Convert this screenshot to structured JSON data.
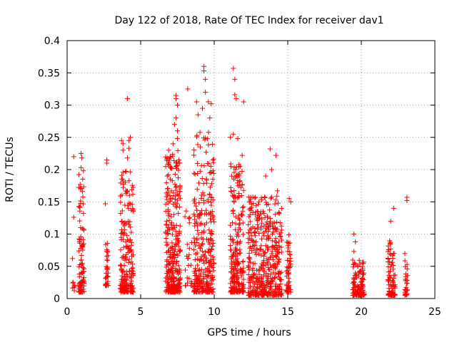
{
  "chart_data": {
    "type": "scatter",
    "title": "Day 122 of 2018, Rate Of TEC Index for receiver dav1",
    "xlabel": "GPS time / hours",
    "ylabel": "ROTI / TECUs",
    "xlim": [
      0,
      25
    ],
    "ylim": [
      0,
      0.4
    ],
    "x_ticks": [
      "0",
      "5",
      "10",
      "15",
      "20",
      "25"
    ],
    "y_ticks": [
      "0",
      "0.05",
      "0.1",
      "0.15",
      "0.2",
      "0.25",
      "0.3",
      "0.35",
      "0.4"
    ],
    "grid": true,
    "marker": "plus",
    "color": "#ff0000",
    "clusters": [
      {
        "x_range": [
          0.35,
          0.55
        ],
        "y_range": [
          0.01,
          0.12
        ],
        "n": 8
      },
      {
        "x_range": [
          0.8,
          1.15
        ],
        "y_range": [
          0.01,
          0.2
        ],
        "n": 110
      },
      {
        "x_range": [
          2.6,
          2.8
        ],
        "y_range": [
          0.02,
          0.09
        ],
        "n": 35
      },
      {
        "x_range": [
          3.6,
          4.5
        ],
        "y_range": [
          0.01,
          0.2
        ],
        "n": 200
      },
      {
        "x_range": [
          6.7,
          7.7
        ],
        "y_range": [
          0.01,
          0.23
        ],
        "n": 320
      },
      {
        "x_range": [
          8.0,
          8.5
        ],
        "y_range": [
          0.02,
          0.15
        ],
        "n": 25
      },
      {
        "x_range": [
          8.6,
          10.0
        ],
        "y_range": [
          0.01,
          0.26
        ],
        "n": 300
      },
      {
        "x_range": [
          11.1,
          12.0
        ],
        "y_range": [
          0.01,
          0.21
        ],
        "n": 240
      },
      {
        "x_range": [
          12.3,
          14.6
        ],
        "y_range": [
          0.005,
          0.16
        ],
        "n": 450
      },
      {
        "x_range": [
          14.9,
          15.2
        ],
        "y_range": [
          0.01,
          0.1
        ],
        "n": 60
      },
      {
        "x_range": [
          19.4,
          20.2
        ],
        "y_range": [
          0.005,
          0.06
        ],
        "n": 130
      },
      {
        "x_range": [
          21.8,
          22.3
        ],
        "y_range": [
          0.005,
          0.09
        ],
        "n": 90
      },
      {
        "x_range": [
          22.95,
          23.15
        ],
        "y_range": [
          0.005,
          0.07
        ],
        "n": 30
      }
    ],
    "outliers": [
      [
        0.45,
        0.22
      ],
      [
        0.45,
        0.126
      ],
      [
        0.95,
        0.225
      ],
      [
        0.95,
        0.203
      ],
      [
        1.0,
        0.218
      ],
      [
        2.7,
        0.215
      ],
      [
        2.7,
        0.21
      ],
      [
        2.6,
        0.147
      ],
      [
        3.7,
        0.245
      ],
      [
        3.8,
        0.24
      ],
      [
        3.8,
        0.23
      ],
      [
        4.1,
        0.31
      ],
      [
        4.3,
        0.25
      ],
      [
        4.2,
        0.245
      ],
      [
        4.2,
        0.233
      ],
      [
        4.1,
        0.218
      ],
      [
        7.4,
        0.315
      ],
      [
        7.4,
        0.31
      ],
      [
        7.5,
        0.3
      ],
      [
        7.4,
        0.28
      ],
      [
        7.3,
        0.27
      ],
      [
        7.5,
        0.26
      ],
      [
        7.5,
        0.248
      ],
      [
        7.2,
        0.24
      ],
      [
        6.9,
        0.23
      ],
      [
        7.0,
        0.22
      ],
      [
        8.2,
        0.325
      ],
      [
        8.8,
        0.305
      ],
      [
        8.9,
        0.285
      ],
      [
        9.3,
        0.36
      ],
      [
        9.3,
        0.353
      ],
      [
        9.4,
        0.34
      ],
      [
        9.4,
        0.32
      ],
      [
        9.2,
        0.295
      ],
      [
        9.6,
        0.305
      ],
      [
        9.8,
        0.302
      ],
      [
        9.7,
        0.28
      ],
      [
        11.3,
        0.357
      ],
      [
        11.4,
        0.34
      ],
      [
        11.4,
        0.316
      ],
      [
        11.5,
        0.31
      ],
      [
        12.0,
        0.305
      ],
      [
        11.3,
        0.255
      ],
      [
        11.1,
        0.25
      ],
      [
        11.9,
        0.222
      ],
      [
        11.6,
        0.248
      ],
      [
        13.8,
        0.232
      ],
      [
        14.2,
        0.222
      ],
      [
        14.3,
        0.167
      ],
      [
        13.5,
        0.19
      ],
      [
        13.9,
        0.2
      ],
      [
        15.1,
        0.155
      ],
      [
        15.2,
        0.15
      ],
      [
        19.5,
        0.1
      ],
      [
        19.6,
        0.088
      ],
      [
        19.5,
        0.073
      ],
      [
        22.2,
        0.14
      ],
      [
        22.0,
        0.12
      ],
      [
        23.1,
        0.157
      ],
      [
        23.1,
        0.152
      ]
    ]
  }
}
